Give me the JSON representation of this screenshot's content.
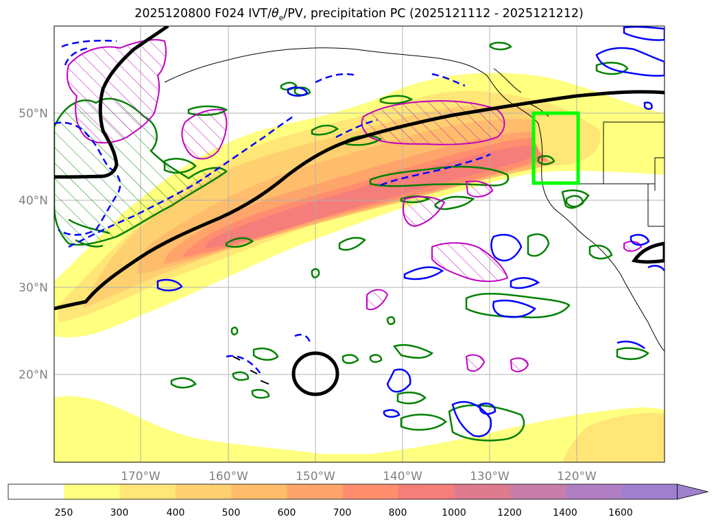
{
  "title": {
    "prefix": "2025120800 F024 IVT/",
    "theta": "θ",
    "theta_sub": "e",
    "suffix": "/PV, precipitation PC (2025121112 - 2025121212)"
  },
  "lat_labels": [
    "50°N",
    "40°N",
    "30°N",
    "20°N"
  ],
  "lon_labels": [
    "170°W",
    "160°W",
    "150°W",
    "140°W",
    "130°W",
    "120°W"
  ],
  "colorbar": {
    "ticks": [
      "250",
      "300",
      "400",
      "500",
      "600",
      "700",
      "800",
      "1000",
      "1200",
      "1400",
      "1600"
    ],
    "colors": [
      "#ffffff",
      "#ffff80",
      "#ffe676",
      "#ffd070",
      "#ffbd6c",
      "#ffa56c",
      "#ff8d6e",
      "#f57d7a",
      "#de7b8e",
      "#c77ea8",
      "#b07fc3",
      "#9f80cf"
    ]
  },
  "colors": {
    "ivt_track": "#000000",
    "box": "#00ff00",
    "pv_contour": "#008000",
    "theta_contour": "#0000ff",
    "precip_contour": "#c000c0",
    "grid": "#b0b0b0",
    "coast": "#000000"
  }
}
